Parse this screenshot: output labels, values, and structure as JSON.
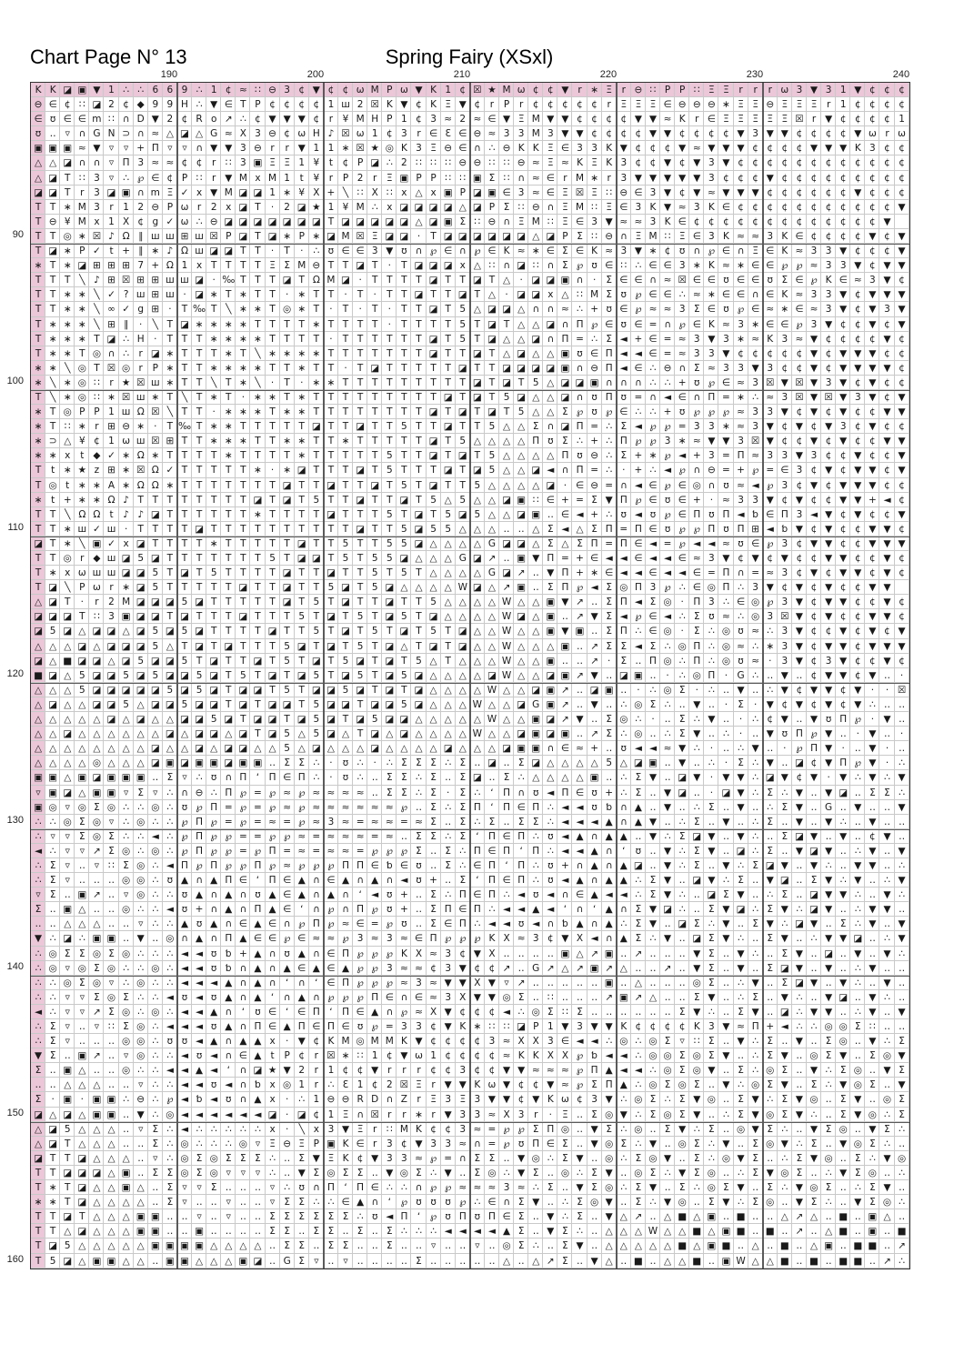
{
  "header": {
    "page_title": "Chart Page N° 13",
    "pattern_title": "Spring Fairy (XSxl)"
  },
  "axes": {
    "column_labels": [
      "190",
      "200",
      "210",
      "220",
      "230",
      "240"
    ],
    "row_labels": [
      "90",
      "100",
      "110",
      "120",
      "130",
      "140",
      "150",
      "160"
    ]
  },
  "grid": {
    "columns": 60,
    "rows": 81,
    "first_column_number": 181,
    "first_row_number": 80,
    "overlap_color": "#ebc7d8",
    "thin_line_color": "#c9c9c9",
    "major_line_color": "#5a5a5a",
    "symbol_color": "#1a1a1a",
    "rows_symbols": [
      "KK◪▣▼1∴∴669∴1¢≈∷⊖3¢▼¢¢ωMPω▼K1¢☒★Mω¢¢▼r∗Ξr⊖∷PP∷ΞΞrrrω3▼31▼¢¢¢",
      "⊖∈¢∷◪2¢◆99H∴▼∈TP¢¢¢¢1ш2☒K▼¢KΞ▼¢rPr¢¢¢¢¢rΞΞΞ∈⊖⊖⊖∗ΞΞ⊖ΞΞΞr1¢¢¢¢",
      "∈ʊ∈∈m∷∩D▼2¢Ro↗∴¢▼▼▼¢r¥MHP1¢3≈2≈∈▼ΞM▼▼¢¢¢¢▼▼≈Kr∈ΞΞΞΞΞ☒r▼¢¢¢¢1",
      "ʊ‥▿∩GN⊃∩≈△◪△G≈X3⊖¢ωH♪☒ω1¢3r∈Ɛ∈⊖≈33M3▼▼¢¢¢¢▼▼¢¢¢¢▼3▼▼¢¢¢¢▼ωrω",
      "▣▣▣≈▼▿▿+Π▿▿∩▼▼3⊖rr▼11∗☒★◎K3Ξ⊖∈∩∴⊖KKΞ∈33K▼¢¢¢▼≈▼▼▼¢¢¢¢▼▼▼K3¢¢",
      "△△◪∩∩▿Π3≈≈¢¢r∷3▣ΞΞ1¥t¢P◪∴2∷∷∷⊖⊖∷∷⊖≈Ξ≈KΞK3¢¢▼¢▼3▼¢¢¢¢¢¢¢¢¢¢¢¢",
      "△◪T∷3▿∴℘∈¢P∷r▼MxM1t¥rP2rΞ▣PP∷∷▣Σ∷∩≈∈rM∗r3▼▼▼▼▼3¢¢¢▼¢¢¢¢¢¢¢¢¢¢",
      "◪◪Tr3◪▣∩mΞ✓x▼M◪◪1∗¥X+╲∷X∷x△x▣P◪▣∈3≈∈Ξ☒Ξ∷⊖∈3▼¢▼≈▼▼▼¢¢¢¢¢¢▼¢¢¢",
      "TT∗M3r12⊖Pωr2x◪T·2◪★1¥M∴x◪◪◪◪△◪PΣ∷⊖∩ΞM∷Ξ∈3K▼≈3K∈¢¢¢¢¢¢¢¢¢¢¢▼",
      "T⊖¥Mx1X¢g✓ω∴⊖◪◪◪◪◪◪◪T◪◪◪◪◪△◪▣Σ∷⊖∩ΞM∷Ξ∈3▼≈≈3K∈¢¢¢¢¢¢¢¢¢¢¢¢¢▼",
      "TT◎∗☒♪Ω∥шш⊞ш☒P◪T◪∗P∗◪M☒Ξ◪◪·T◪◪◪◪◪◪△◪PΣ∷⊖∩ΞM∷Ξ∈3K≈≈3K∈¢¢¢¢▼¢▼",
      "T◪∗P✓t+∥∗♪Ωш◪◪TT·T·∴ʊ∈∈3▼ʊ∩℘∈∩℘∈K≈∗∈Σ∈K≈3▼∗¢ʊ∩℘∈∩Ξ∈K≈33▼¢¢¢▼",
      "∗T∗◪⊞⊞⊞7+Ω1xTTTTΞΣM⊖TT◪T·T◪◪◪x△∷∩◪∷∩Σ℘ʊ∈∷∴∈∈3∗K≈∗∈∈℘℘≈33▼¢▼▼",
      "TTT╲♪⊞☒⊞⊞шш◪·‰TTT◪TΩM◪·TTTT◪TT◪T△·◪◪▣∩·Σ∈∈∩≈☒∈∈ʊ∈∈ʊΣ∈℘K∈≈3▼¢",
      "TT∗∗╲✓?ш⊞ш·◪∗T∗TT·∗TT·T·TT◪TT◪T△·◪◪x△∷MΣʊ℘∈∈∴≈∗∈∈∩∈K≈33▼¢▼▼▼",
      "TT∗∗╲∞✓g⊞·T‰T╲∗∗T◎∗T·T·T·TT◪T5△◪◪△∩∩≈∴+ʊ∈℘≈≈3Σ∈ʊ℘∈≈∗∈≈3▼¢▼3▼",
      "T∗∗∗╲⊞∥·╲T◪∗∗∗∗TTTT∗TTTT·TTTT5T◪T△△◪∩Π℘∈ʊ∈=∩℘∈K≈3∗∈∈℘3▼¢¢▼¢▼",
      "T∗∗∗T◪∴H·TTT∗∗∗∗TTTT·TTTTTT◪T5T◪△△◪∩Π=∴Σ◄+∈=≈3▼3∗≈K3≈▼¢¢¢¢▼¢",
      "T∗∗T◎∩∴r◪∗TTT∗T╲∗∗∗∗TTTTTTT◪TT◪T△◪△△▣ʊ∈Π◄◄∈=≈33▼¢¢¢¢¢▼¢▼▼▼¢¢",
      "∗∗╲◎T☒◎rP∗TT∗∗∗∗TT∗TT·T◪TTTTT◪TT◪◪◪◪▣∩⊖Π◄∈∴⊖∩Σ≈33▼3¢¢▼¢▼▼▼▼¢",
      "∗╲∗◎∷r★☒ш∗TT╲T∗╲·T·∗∗TTTTTTTTT◪T◪T5△◪◪▣∩∩∩∴∴+ʊ℘∈≈3☒▼☒▼3▼¢▼¢¢",
      "T╲∗◎∷∗☒ш∗T╲T∗T·∗∗T∗TTTTTTTTT◪T◪T5◪△△◪∩ʊΠʊ=∩◄∈∩Π=∗∴≈3☒▼☒▼3▼¢▼",
      "∗T◎PP1шΩ☒╲TT·∗∗∗T∗∗TTTTTTTT◪T◪T◪T5△△Σ℘ʊ℘∈∴∴+ʊ℘℘℘≈33▼¢▼¢▼¢¢▼▼",
      "∗T∷∗r⊞⊖∗·T‰T∗∗TTTTT◪TT◪TT5TT◪TT5△△Σ∩◪Π=∴Σ◄℘℘=33∗≈3▼¢▼¢▼3¢▼¢¢",
      "∗⊃△¥¢1ωш☒⊞TT∗∗∗TT∗∗TT∗TTTTT◪T5△△△△ΠʊΣ∴+∴Π℘℘3∗≈▼▼3☒▼¢¢▼¢▼¢¢▼▼",
      "∗∗xt◆✓∗Ω∗TTTT∗TTTT∗TTTTT5TT◪T◪T5△△△△Πʊ⊖∴Σ+∗℘◄+3=Π≈33▼3¢¢▼¢¢▼",
      "Tt∗★z⊞∗☒Ω✓TTTTT∗·∗◪TTT◪T5TTT◪T◪5△△◪◄∩Π=∴·+∴◄℘∩⊖=+℘=∈3¢▼¢▼▼¢▼",
      "T◎t∗∗A∗ΩΩ∗TTTTTTT◪TT◪TT◪T5T◪TT5△△△△◪·∈⊖=∩◄∈℘∈◎∩ʊ≈◄℘3¢▼¢▼▼▼¢¢",
      "∗t+∗∗Ω♪TTTTTTTT◪T◪T5TT◪TT◪T5△5△△◪▣∷∈+=Σ▼Π℘∈ʊ∈+·≈33▼¢▼¢¢▼▼+◄¢",
      "TT╲ΩΩt♪♪◪TTTTTT∗TTTT◪TTT5T◪T5◪5△△◪▣‥∈◄+∴ʊ◄ʊ℘∈ΠʊΠ◄ƅ∈Π3◄▼¢▼¢¢▼",
      "TT∗ш✓ш·TTTT◪TTTTTTTTTT◪TT5◪55△△△‥‥△Σ◄△ΣΠ=Π∈ʊ℘℘ΠʊΠ⊞◄ƅ▼¢▼¢¢▼▼¢",
      "◪T∗╲▣✓x◪TTTT∗TTTTT◪TT5TT55◪△△△△G◪◪△Σ△ΣΠ=Π∈◄=℘◄◄≈ʊ∈℘3¢▼▼¢¢▼▼▼",
      "TT◎r◆ш◪5◪TTTTTTT5T◪◪T5T55◪△△△G◪↗‥▣▼Π=+∈◄◄∈◄◄∈≈3▼¢▼¢▼¢¢▼▼¢¢▼¢",
      "T∗xωшш◪◪5T◪T5TTTT◪TT◪TT5T5T△△△△G◪↗‥▼Π+∗∈◄◄∈◄◄∈=Π∩=≈3¢▼¢▼▼¢▼¢",
      "T◪╲Pωr∗◪5TTTTT◪TT◪TT5◪T5◪△△△△W◪△↗▣‥ΣΠ℘◄Σ◎Π3℘∴∈◎Π∴3▼¢▼¢▼¢¢▼▼",
      "△◪T·r2M◪◪◪5◪TTTTT◪T5T◪TT◪TT5△△△△W△△▣▼↗‥ΣΠ◄Σ◎·Π3∴∈◎℘3▼¢▼▼¢¢▼¢",
      "◪◪◪T∷3▣◪◪T◪TTT◪TTT5T◪T5T◪5T◪△△△△W◪△▣‥↗▼Σ◄℘∈◄∴Σʊ≈∴◎3☒▼¢▼¢¢▼▼¢",
      "◪5◪△◪◪△◪5◪5◪TTTT◪TT5T◪T5T◪T5T◪△△W△△▣▼▣‥ΣΠ∴∈◎·Σ∴◎ʊ≈∴3▼¢¢▼¢▼¢▼",
      "△△△◪△◪◪◪5△T◪T◪TTT5◪T◪T5T◪△T◪T◪△△W△△△▣‥↗ΣΣ◄Σ∴◎Π∴◎≈∴∗3▼¢▼▼¢▼▼▼",
      "◪△■◪◪△◪5◪◪5T◪TT◪T5T◪T5◪T◪T5△T△△△W△△▣‥‥↗·Σ‥Π◎∴Π∴◎ʊ≈·3▼¢3▼¢¢▼¢",
      "■◪△5◪◪5◪5◪◪5◪T5T◪T◪5T◪5T◪5◪△△△△◪W△△◪▣↗▼‥◪▣‥·∴◎Π·G∴‥▼‥¢▼▼¢▼‥·",
      "△△△5◪◪◪◪◪5◪5◪T◪◪T5T◪◪5◪T◪T◪△△△△W△△◪▣↗‥◪▣‥·∴◎Σ·∴‥▼‥∴▼¢▼▼¢▼··☒",
      "△◪△△◪◪5△◪◪5◪◪T◪T◪◪T5◪◪T◪◪5◪△△△W△△◪G▣↗‥▼‥∴◎Σ∴‥▼‥·Σ·▼¢▼¢▼¢▼∴‥‥",
      "△△△△△◪△◪△△◪◪5◪T◪◪T◪5◪T◪5◪◪△△△△△W△△▣◪↗▼‥Σ◎∴·‥Σ∴▼‥·∴¢▼‥▼ʊΠ℘·▼‥",
      "△△◪△△△△△△◪△◪◪△◪T◪5△5◪△T◪△◪△△△△W△△◪▣◪▣‥↗Σ∴◎‥∴Σ▼‥∴·‥▼ʊΠ℘▼‥·▼‥·",
      "△△△△△△△△◪△△◪△◪◪△△5△◪△△△◪△△△△◪△△△◪▣▣∩∈≈+‥ʊ◄◄≈▼∴·‥∴▼‥·℘Π▼·‥▼·‥",
      "△△△△◎△△△◪▣◪▣▣◪▣▣‥ΣΣ∴·ʊ∴·∴ΣΣΣ∴Σ‥◪‥Σ◪△△△△5△◪▣‥▼‥∴·Σ∴▼‥◪¢▼Π℘▼·∴",
      "▣▣△▣◪▣▣▣‥Σ▿∴ʊ∩ΠʻΠ∈Π∴·ʊ∴‥ΣΣ∴Σ‥Σ◪‥Σ∴△△△△▣‥∴Σ▼‥◪▼·▼▼∴◪▼¢▼·▼∴▼∴▼",
      "▿▣◪△▣▣▿Σ▿∴∩⊖∴Π℘=℘≈℘≈≈≈≈‥ΣΣ∴Σ·Σ∴ʻΠ∩ʊ◄Π∈ʊ+∴Σ‥▼◪‥·◪▼∴Σ∴▼‥▼◪‥ΣΣ∴",
      "▣◎▿◎Σ◎∴∴◎∴ʊ℘Π=℘=℘≈℘≈≈≈≈≈≈℘‥Σ∴ΣΠʻΠ∈Π∴◄◄ʊƅ∩▲‥▼‥∴Σ‥▼‥∴Σ▼‥G‥▼‥‥▼",
      "∴∴◎Σ◎▿∴◎∴∴℘Π℘=℘=≈=℘≈3≈=≈≈=≈Σ‥Σ∴Σ‥ΣΣ∴◄◄◄▲∩▲▼‥∴Σ‥▼‥∴Σ‥▼‥▼∴‥▼‥‥",
      "∴▿▿Σ◎Σ∴∴◄∴℘Π℘℘==℘℘≈=≈≈≈=≈‥ΣΣ∴ΣʻΠ∈Π∴ʊ◄▲∩▲▲‥▼∴Σ◪▼‥▼∴‥Σ◪▼‥▼‥¢▼‥",
      "◄∴▿▿↗Σ◎∴◎∴℘Π℘℘=℘Π=≈=≈≈=℘℘℘Σ‥Σ∴Π∈ΠʻΠ∴◄◄▲∩ʻʊ‥▼∴Σ▼‥◪∴Σ‥▼◪▼‥∴▼‥▼",
      "∴Σ▿‥▿∷Σ◎∴◄Π℘Π℘℘Π℘≈℘℘℘ΠΠ∈ƅ∈ʊ‥Σ∴∈ΠʻΠ∴ʊ+∩▲∩▲◪‥▼∴Σ‥▼∴Σ◪▼‥▼∴‥▼▼‥∴",
      "∴Σ▿‥‥‥◎◎∴ʊ▲∩▲Π∈ʻΠ∈▲∩∈▲∩▲∩◄ʊ+‥ΣʻΠ∈Π∴ʊ◄▲∩▲▲∴Σ▼‥◪▼∴Σ‥▼◪‥Σ▼∴▼‥∴▼",
      "▿Σ‥▣↗‥▿◎∴∴ʊ▲∩▲∩ʊ▲∈▲∩▲∩ʻ◄ʊ+‥Σ∴Π∈Π∴◄ʊ◄∩∈▲◄◄∴Σ▼∴‥◪Σ▼‥∴Σ‥◪▼▼∴‥▼∴",
      "Σ‥▣△‥‥◎∴∴◄ʊ+∩▲∩Π▲∈ʻ∩℘∩Π℘ʊ+‥ΣΠ∈Π∴◄◄▲◄ʻ∩ʻ▲∩Σ▼◪∴‥Σ▼◪∴Σ▼∴◪▼‥∴▼▼‥",
      "‥‥△△△‥‥▿∴∴▲ʊ▲∩∈▲∈∩℘Π℘≈∈=℘ʊ‥Σ∈Π∴◄◄ʊ◄∩ƅ▲∩▲∴Σ▼‥◪Σ∴▼‥Σ▼∴◪▼‥Σ∴▼‥▼",
      "▼∴◪∴▣▣‥▼‥◎∩▲∩Π▲∈∈℘∈≈≈℘3≈3≈∈Π℘℘℘KX≈3¢▼X◄∩▲Σ∴▼‥◪Σ▼∴‥Σ▼‥∴▼▼◪‥∴▼",
      "∴◎ΣΣ◎Σ◎∴∴∴◄◄ʊƅ+▲∩ʊ▲∩∈Π℘℘℘KX≈3¢▼X‥‥‥‥▣△↗▣‥↗‥‥‥▼Σ‥▼∴‥Σ▼‥◪‥▼‥▼∴",
      "∴◎▿◎Σ◎∴∴◎∴◄◄ʊƅ∩▲∩▲∈▲∈▲℘℘3≈≈¢3▼¢¢↗‥G↗△↗▣↗△‥‥↗‥▼Σ‥▼‥Σ◪▼‥▼‥∴▼‥‥",
      "∴∴◎Σ◎▿∴◎∴∴◄◄◄▲∩▲∩ʻ∩ʻ∈Π℘℘℘≈3≈▼▼X▼▿↗‥‥‥‥‥▣‥△‥‥‥◎Σ‥∴▼‥Σ◪▼‥▼∴‥▼‥",
      "∴∴▿▿Σ◎Σ∴∴◄ʊ◄ʊ▲∩▲ʻ∩▲∩℘℘℘Π∈∩∈≈3X▼▼◎Σ‥∷‥‥‥↗▣↗△‥‥Σ▼‥∴Σ‥▼∴‥▼◪‥▼∴‥",
      "◄∴▿▿↗Σ◎∴◎∴◄◄▲∩ʻʊ∈ʻ∈ΠʻΠ∈▲∩℘≈X▼¢¢¢◄∴◎Σ∷Σ‥‥‥‥‥‥Σ▼∴‥Σ▼‥◪∴▼▼‥∴▼‥▼",
      "∴Σ▿‥▿∷Σ◎∴◄◄◄ʊ▲∩Π∈▲Π∈Π∈ʊ℘=33¢▼K∗∷∷◪P1▼3▼▼K¢¢¢¢K3▼≈Π+◄∴∴◎◎Σ∷‥‥",
      "∴Σ▿‥‥‥◎◎∴ʊʊ◄▲∩▲▲x·▼¢KM◎MMK▼¢¢¢¢3≈XX3∈◄◄∴◎∴◎Σ▿∷Σ‥▼∴Σ‥▼‥Σ◎‥▼∴Σ",
      "▼Σ‥▣↗‥▿◎∴∴◄ʊ◄∩∈▲tP¢r☒∗∷1¢▼ω1¢¢¢¢≈KKXX℘ƅ◄◄∴◎◎Σ◎Σ▼‥∴Σ▼‥◎Σ▼‥Σ◎▼",
      "Σ‥▣△‥‥◎∴∴◄◄▲◄ʻ∩◪★▼2r1¢¢▼rrr¢¢3¢¢▼▼≈≈≈℘Π▲◄◄∴◎Σ◎▼‥Σ∴◎Σ‥▼∴Σ◎‥▼Σ",
      "‥‥△△△‥‥▿∴∴◄◄ʊ◄∩ƅx◎1r∴Ɛ1¢2☒Ξr▼▼Kω▼¢¢▼≈℘ΣΠ▲∴◎Σ◎Σ‥▼∴◎Σ▼‥Σ∴▼◎Σ‥▼",
      "Σ·▣·▣▣∴⊖∴℘◄ƅ◄ʊ∩▲x·∴1⊖⊖RD∩ZrΞ3Ξ3▼▼¢▼Kω¢3▼∴◎Σ∴Σ▼◎‥Σ▼∴Σ▼◎‥Σ▼‥◎Σ",
      "◪△◪△▣▣‥▼∴◎◄◄◄◄◄◄◪·◪¢1Ξ∩☒rr∗r▼33≈X3r·Ξ‥Σ◎▼∴Σ◎Σ▼‥∴Σ▼◎Σ▼∴‥Σ▼◎∴Σ",
      "△◪5△△△‥▿Σ∴◄∴∴∴∴∴x·╲x3▼Ξr∷MK¢¢3≈=℘℘ΣΠ◎‥▼Σ∴◎‥Σ▼∴Σ‥◎▼Σ∴‥▼Σ◎‥▼Σ∴",
      "△◪T△△△‥‥Σ∴◎∴∴∴◎▿Ξ⊖ΞP▣K∈r3¢▼33≈∩=℘ʊΠ∈Σ‥▼◎Σ∴▼‥◎Σ∴▼‥Σ◎▼∴Σ‥▼◎Σ∴‥",
      "◪TT◪△△△‥▿∴◎Σ◎ΣΣΣ∴‥Σ▼ΞK¢▼33≈℘=∩ΣΣ‥▼◎∴Σ▼‥◎∴Σ◎▼‥Σ∴◎▼Σ‥∴Σ▼◎‥Σ∴▼◎",
      "TT◪◪◪△▣‥ΣΣ◎Σ◎▿▿▿∴‥▼Σ◎ΣΣ‥▼◎Σ∴▼‥Σ◎∴▼Σ‥◎∴Σ▼‥◎Σ∴▼Σ◎‥∴Σ▼◎Σ‥∴▼Σ◎‥∴",
      "T∗T◪△△▣△‥Σ▿▿Σ‥‥‥▿∴ʊ∩ΠʻΠ∈∴∴∩℘℘≈≈≈3≈∴Σ‥▼Σ◎∴Σ▼‥Σ∴◎Σ▼‥Σ∴▼◎Σ‥∴Σ▼‥",
      "∗∗T◪△△△△‥Σ▿‥‥▿‥‥▿ΣΣ∴∴∈▲∩ʻ℘ʊʊʊ℘∴∈∩Σ▼‥∴Σ◎▼‥Σ∴▼◎‥Σ▼∴Σ◎‥▼Σ∴‥▼Σ◎∴",
      "TT◪T△△△▣▣‥‥▿‥▿‥‥ΣΣΣΣΣΣ∴ʊ◄Πʻ℘ʊΠʊΠ∈Σ‥▼∴Σ‥▼△↗‥△■△▣‥■‥‥△↗△‥■‥▣△‥",
      "TT△◪△△△▣▣‥‥▣‥‥‥‥ΣΣ‥ΣΣ‥Σ‥Σ∴∴∴◄◄◄◄▲Σ‥▼Σ∴‥△△△W△△■△▣■‥■‥↗‥△■‥▣‥■",
      "T◪5△△△△△▣▣▣▣△△△△‥ΣΣ‥ΣΣ‥‥Σ‥‥▿‥‥▿‥◎Σ∴‥Σ▼‥△△△△△■△▣■‥△‥■‥△▣‥■■‥↗",
      "T5◪△▣▣△△‥▣▣△△△▣◪‥GΣ▿‥▿‥‥‥‥Σ‥‥‥‥‥△‥△↗Σ‥▼△‥■‥△△■‥▣W△△■‥■‥■■‥↗∴"
    ]
  }
}
